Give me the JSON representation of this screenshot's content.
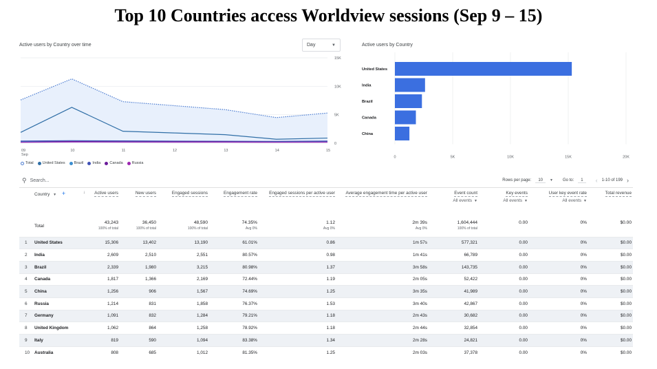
{
  "slide_title": "Top 10 Countries access Worldview sessions (Sep 9 – 15)",
  "line_card": {
    "title": "Active users by Country over time",
    "granularity": "Day",
    "y_ticks": [
      "15K",
      "10K",
      "5K",
      "0"
    ],
    "x_ticks": [
      "09",
      "10",
      "11",
      "12",
      "13",
      "14",
      "15"
    ],
    "x_sub": "Sep"
  },
  "bar_card": {
    "title": "Active users by Country",
    "x_ticks": [
      "0",
      "5K",
      "10K",
      "15K",
      "20K"
    ]
  },
  "chart_data": [
    {
      "type": "line",
      "x": [
        "Sep 09",
        "Sep 10",
        "Sep 11",
        "Sep 12",
        "Sep 13",
        "Sep 14",
        "Sep 15"
      ],
      "ylim": [
        0,
        15000
      ],
      "series": [
        {
          "name": "Total",
          "color": "#4a7bd0",
          "style": "dotted-area",
          "values": [
            7600,
            11300,
            7300,
            6600,
            5900,
            4500,
            5300
          ]
        },
        {
          "name": "United States",
          "color": "#2f6ea6",
          "values": [
            1900,
            6300,
            2100,
            1800,
            1500,
            700,
            900
          ]
        },
        {
          "name": "Brazil",
          "color": "#3b8ed0",
          "values": [
            300,
            350,
            380,
            360,
            330,
            300,
            320
          ]
        },
        {
          "name": "India",
          "color": "#3f51b5",
          "values": [
            400,
            450,
            420,
            380,
            350,
            330,
            400
          ]
        },
        {
          "name": "Canada",
          "color": "#6a1b9a",
          "values": [
            200,
            300,
            260,
            250,
            240,
            200,
            230
          ]
        },
        {
          "name": "Russia",
          "color": "#9c27b0",
          "values": [
            150,
            200,
            180,
            170,
            160,
            150,
            170
          ]
        }
      ],
      "legend": "bottom-left"
    },
    {
      "type": "bar",
      "orientation": "horizontal",
      "categories": [
        "United States",
        "India",
        "Brazil",
        "Canada",
        "China"
      ],
      "values": [
        15306,
        2609,
        2339,
        1817,
        1256
      ],
      "xlim": [
        0,
        20000
      ],
      "color": "#3b6fe0"
    }
  ],
  "legend": [
    {
      "label": "Total",
      "color": "#4a7bd0",
      "ring": true
    },
    {
      "label": "United States",
      "color": "#2f6ea6"
    },
    {
      "label": "Brazil",
      "color": "#3b8ed0"
    },
    {
      "label": "India",
      "color": "#3f51b5"
    },
    {
      "label": "Canada",
      "color": "#6a1b9a"
    },
    {
      "label": "Russia",
      "color": "#9c27b0"
    }
  ],
  "toolbar": {
    "search_placeholder": "Search...",
    "rows_label": "Rows per page:",
    "rows_value": "10",
    "goto_label": "Go to:",
    "goto_value": "1",
    "range": "1-10 of 199"
  },
  "table": {
    "country_header": "Country",
    "headers": [
      {
        "label": "Active users"
      },
      {
        "label": "New users"
      },
      {
        "label": "Engaged sessions"
      },
      {
        "label": "Engagement rate"
      },
      {
        "label": "Engaged sessions per active user"
      },
      {
        "label": "Average engagement time per active user"
      },
      {
        "label": "Event count",
        "sub": "All events"
      },
      {
        "label": "Key events",
        "sub": "All events"
      },
      {
        "label": "User key event rate",
        "sub": "All events"
      },
      {
        "label": "Total revenue"
      }
    ],
    "total": {
      "label": "Total",
      "cells": [
        {
          "v": "43,243",
          "s": "100% of total"
        },
        {
          "v": "36,450",
          "s": "100% of total"
        },
        {
          "v": "48,590",
          "s": "100% of total"
        },
        {
          "v": "74.35%",
          "s": "Avg 0%"
        },
        {
          "v": "1.12",
          "s": "Avg 0%"
        },
        {
          "v": "2m 39s",
          "s": "Avg 0%"
        },
        {
          "v": "1,604,444",
          "s": "100% of total"
        },
        {
          "v": "0.00",
          "s": ""
        },
        {
          "v": "0%",
          "s": ""
        },
        {
          "v": "$0.00",
          "s": ""
        }
      ]
    },
    "rows": [
      {
        "i": "1",
        "c": "United States",
        "v": [
          "15,306",
          "13,402",
          "13,190",
          "61.01%",
          "0.86",
          "1m 57s",
          "577,321",
          "0.00",
          "0%",
          "$0.00"
        ]
      },
      {
        "i": "2",
        "c": "India",
        "v": [
          "2,609",
          "2,510",
          "2,551",
          "80.57%",
          "0.98",
          "1m 41s",
          "66,789",
          "0.00",
          "0%",
          "$0.00"
        ]
      },
      {
        "i": "3",
        "c": "Brazil",
        "v": [
          "2,339",
          "1,980",
          "3,215",
          "80.98%",
          "1.37",
          "3m 58s",
          "143,735",
          "0.00",
          "0%",
          "$0.00"
        ]
      },
      {
        "i": "4",
        "c": "Canada",
        "v": [
          "1,817",
          "1,366",
          "2,169",
          "72.44%",
          "1.19",
          "2m 05s",
          "52,422",
          "0.00",
          "0%",
          "$0.00"
        ]
      },
      {
        "i": "5",
        "c": "China",
        "v": [
          "1,256",
          "906",
          "1,567",
          "74.69%",
          "1.25",
          "3m 35s",
          "41,989",
          "0.00",
          "0%",
          "$0.00"
        ]
      },
      {
        "i": "6",
        "c": "Russia",
        "v": [
          "1,214",
          "831",
          "1,858",
          "76.37%",
          "1.53",
          "3m 40s",
          "42,867",
          "0.00",
          "0%",
          "$0.00"
        ]
      },
      {
        "i": "7",
        "c": "Germany",
        "v": [
          "1,091",
          "832",
          "1,284",
          "79.21%",
          "1.18",
          "2m 43s",
          "30,682",
          "0.00",
          "0%",
          "$0.00"
        ]
      },
      {
        "i": "8",
        "c": "United Kingdom",
        "v": [
          "1,062",
          "864",
          "1,258",
          "78.92%",
          "1.18",
          "2m 44s",
          "32,854",
          "0.00",
          "0%",
          "$0.00"
        ]
      },
      {
        "i": "9",
        "c": "Italy",
        "v": [
          "819",
          "590",
          "1,094",
          "83.38%",
          "1.34",
          "2m 28s",
          "24,821",
          "0.00",
          "0%",
          "$0.00"
        ]
      },
      {
        "i": "10",
        "c": "Australia",
        "v": [
          "808",
          "685",
          "1,012",
          "81.35%",
          "1.25",
          "2m 03s",
          "37,378",
          "0.00",
          "0%",
          "$0.00"
        ]
      }
    ]
  }
}
